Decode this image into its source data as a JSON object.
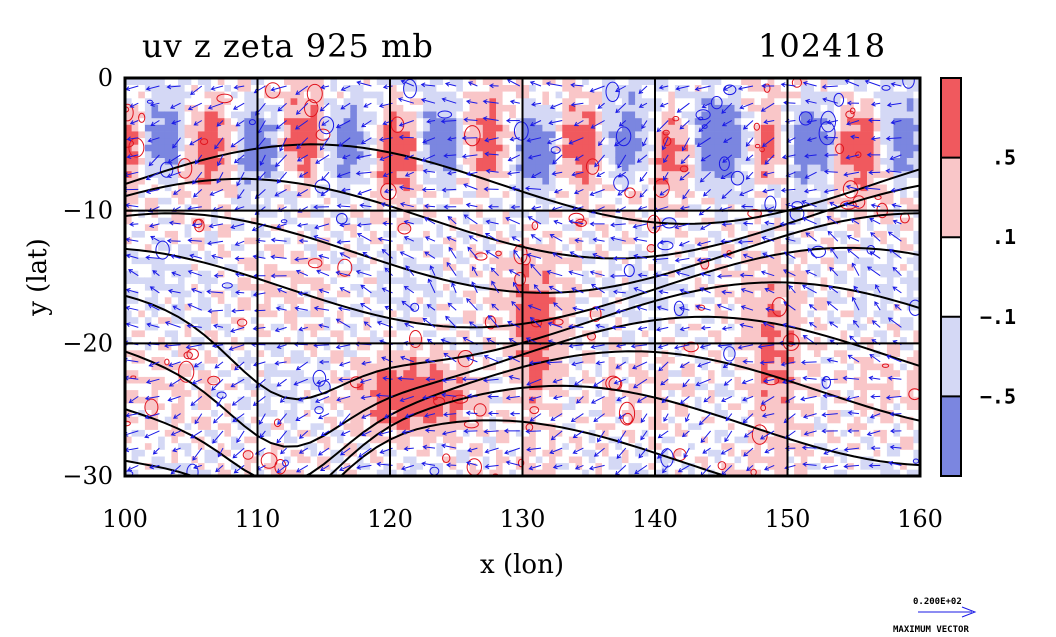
{
  "chart_data": {
    "type": "heatmap",
    "title": "uv z zeta 925 mb",
    "timestamp": "102418",
    "xlabel": "x (lon)",
    "ylabel": "y (lat)",
    "xlim": [
      100,
      160
    ],
    "ylim": [
      -30,
      0
    ],
    "x_ticks": [
      "100",
      "110",
      "120",
      "130",
      "140",
      "150",
      "160"
    ],
    "y_ticks": [
      "0",
      "−10",
      "−20",
      "−30"
    ],
    "y_tick_values": [
      0,
      -10,
      -20,
      -30
    ],
    "x_tick_values": [
      100,
      110,
      120,
      130,
      140,
      150,
      160
    ],
    "grid": true,
    "colorbar": {
      "placement": "right",
      "levels": [
        {
          "label": ".5",
          "color": "#f0595e"
        },
        {
          "label": ".1",
          "color": "#f9c6c8"
        },
        {
          "label": "−.1",
          "color": "#ffffff"
        },
        {
          "label": "−.5",
          "color": "#d4d8f5"
        },
        {
          "label": "",
          "color": "#7b86e0"
        }
      ]
    },
    "vector_legend": {
      "value": "0.200E+02",
      "label": "MAXIMUM VECTOR"
    },
    "colors": {
      "positive_contour": "#e0141e",
      "negative_contour": "#1a1ae6",
      "height_contour": "#000000",
      "vector": "#1a1ae6"
    }
  }
}
